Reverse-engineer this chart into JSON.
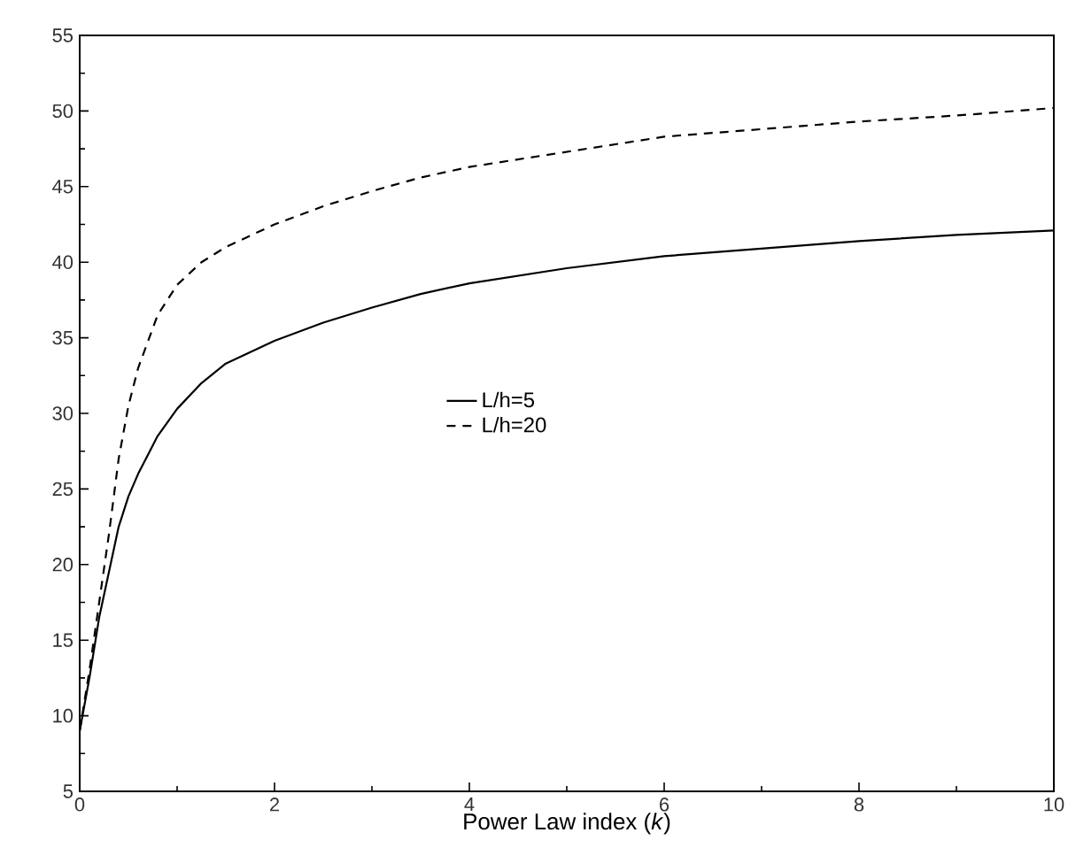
{
  "chart_data": {
    "type": "line",
    "xlabel": "Power Law index (*k*)",
    "xlim": [
      0,
      10
    ],
    "ylim": [
      5,
      55
    ],
    "xticks": [
      0,
      2,
      4,
      6,
      8,
      10
    ],
    "yticks": [
      5,
      10,
      15,
      20,
      25,
      30,
      35,
      40,
      45,
      50,
      55
    ],
    "legend": "center",
    "grid": false,
    "series": [
      {
        "name": "L/h=5",
        "color": "#000000",
        "line_style": "solid",
        "x": [
          0,
          0.1,
          0.2,
          0.3,
          0.4,
          0.5,
          0.6,
          0.8,
          1,
          1.25,
          1.5,
          2,
          2.5,
          3,
          3.5,
          4,
          5,
          6,
          7,
          8,
          9,
          10
        ],
        "values": [
          9,
          12.5,
          16.5,
          19.5,
          22.5,
          24.5,
          26,
          28.5,
          30.3,
          32,
          33.3,
          34.8,
          36,
          37,
          37.9,
          38.6,
          39.6,
          40.4,
          40.9,
          41.4,
          41.8,
          42.1
        ]
      },
      {
        "name": "L/h=20",
        "color": "#000000",
        "line_style": "dashed",
        "x": [
          0,
          0.1,
          0.2,
          0.3,
          0.4,
          0.5,
          0.6,
          0.8,
          1,
          1.25,
          1.5,
          2,
          2.5,
          3,
          3.5,
          4,
          5,
          6,
          7,
          8,
          9,
          10
        ],
        "values": [
          9,
          13,
          17.5,
          22,
          27,
          30.5,
          33,
          36.5,
          38.5,
          40,
          41,
          42.5,
          43.7,
          44.7,
          45.6,
          46.3,
          47.3,
          48.3,
          48.8,
          49.3,
          49.7,
          50.2
        ]
      }
    ]
  }
}
